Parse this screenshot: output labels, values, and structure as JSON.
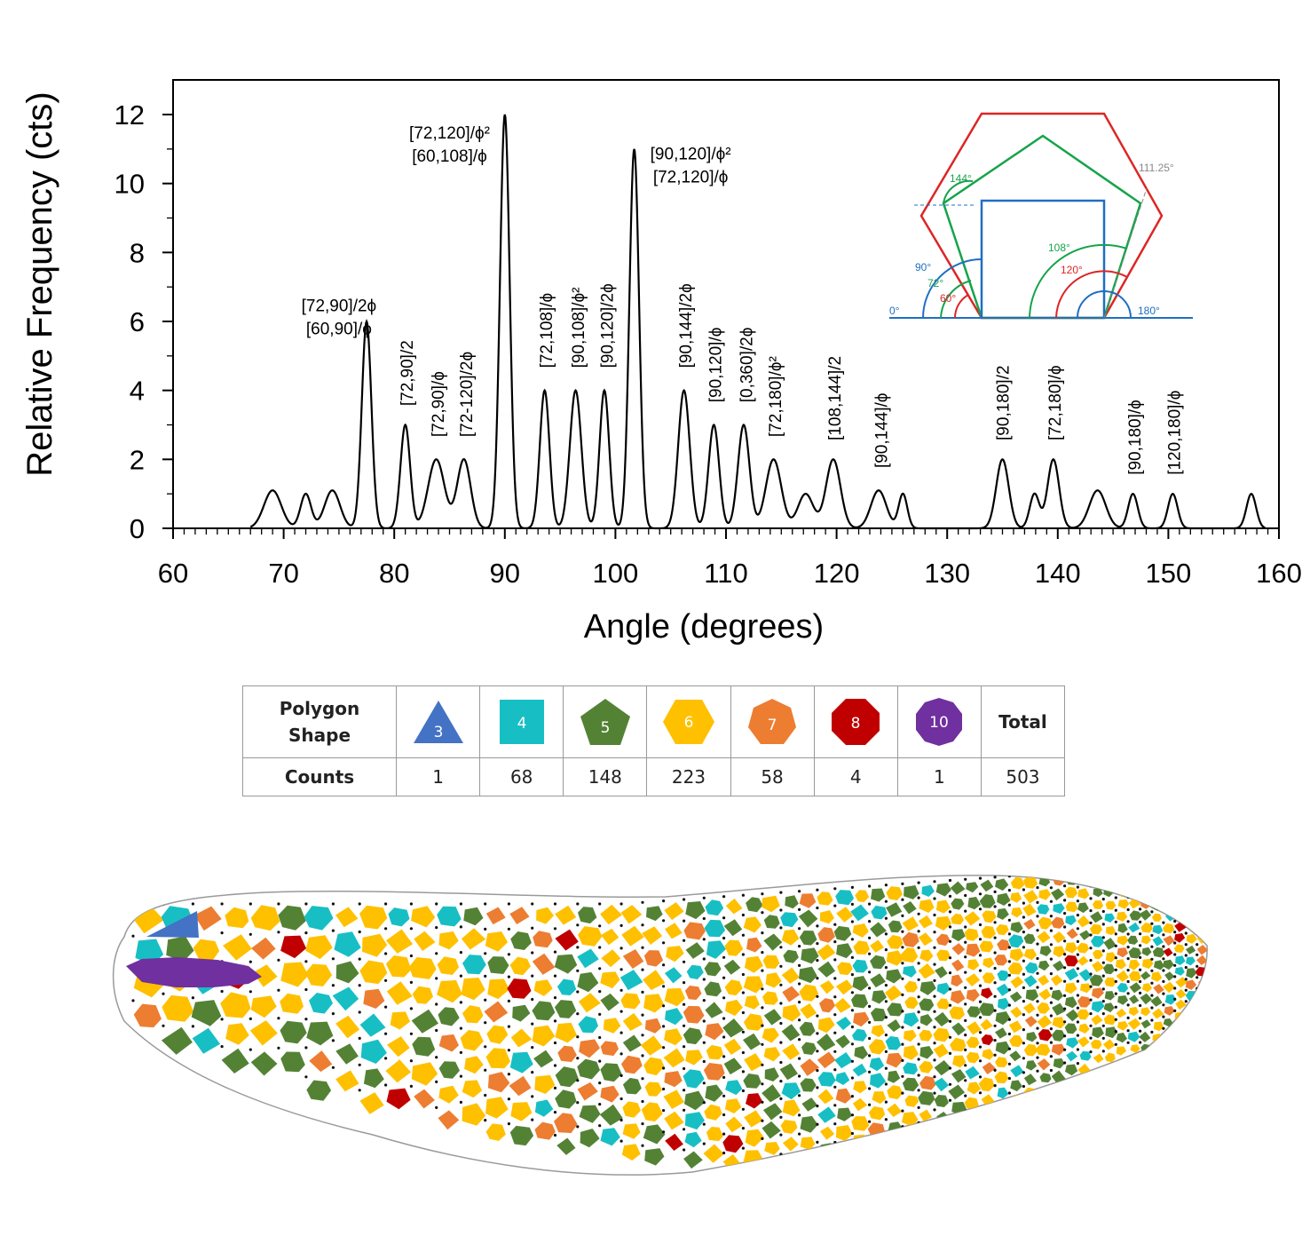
{
  "chart_data": {
    "type": "line",
    "title": "",
    "xlabel": "Angle (degrees)",
    "ylabel": "Relative Frequency (cts)",
    "xlim": [
      60,
      160
    ],
    "ylim": [
      0,
      12.5
    ],
    "xticks": [
      60,
      70,
      80,
      90,
      100,
      110,
      120,
      130,
      140,
      150,
      160
    ],
    "yticks": [
      0,
      2,
      4,
      6,
      8,
      10,
      12
    ],
    "grid": false,
    "legend": "none",
    "peaks": [
      {
        "x": 69,
        "y": 1.1,
        "w": 0.9
      },
      {
        "x": 72,
        "y": 1.0,
        "w": 0.55
      },
      {
        "x": 74.4,
        "y": 1.1,
        "w": 0.8
      },
      {
        "x": 77.5,
        "y": 6.0,
        "w": 0.5
      },
      {
        "x": 81,
        "y": 3.0,
        "w": 0.5
      },
      {
        "x": 83.8,
        "y": 2.0,
        "w": 0.85
      },
      {
        "x": 86.3,
        "y": 2.0,
        "w": 0.7
      },
      {
        "x": 90,
        "y": 12.0,
        "w": 0.5
      },
      {
        "x": 93.6,
        "y": 4.0,
        "w": 0.5
      },
      {
        "x": 96.4,
        "y": 4.0,
        "w": 0.6
      },
      {
        "x": 99,
        "y": 4.0,
        "w": 0.5
      },
      {
        "x": 101.7,
        "y": 11.0,
        "w": 0.5
      },
      {
        "x": 106.2,
        "y": 4.0,
        "w": 0.6
      },
      {
        "x": 108.9,
        "y": 3.0,
        "w": 0.55
      },
      {
        "x": 111.6,
        "y": 3.0,
        "w": 0.6
      },
      {
        "x": 114.3,
        "y": 2.0,
        "w": 0.8
      },
      {
        "x": 117.2,
        "y": 1.0,
        "w": 0.8
      },
      {
        "x": 119.7,
        "y": 2.0,
        "w": 0.75
      },
      {
        "x": 123.8,
        "y": 1.1,
        "w": 0.8
      },
      {
        "x": 126,
        "y": 1.0,
        "w": 0.45
      },
      {
        "x": 135,
        "y": 2.0,
        "w": 0.65
      },
      {
        "x": 137.9,
        "y": 1.0,
        "w": 0.5
      },
      {
        "x": 139.6,
        "y": 2.0,
        "w": 0.6
      },
      {
        "x": 143.6,
        "y": 1.1,
        "w": 0.85
      },
      {
        "x": 146.8,
        "y": 1.0,
        "w": 0.5
      },
      {
        "x": 150.4,
        "y": 1.0,
        "w": 0.5
      },
      {
        "x": 157.5,
        "y": 1.0,
        "w": 0.5
      }
    ],
    "annotations": [
      {
        "lines": [
          "[72,90]/2ϕ",
          "[60,90]/ϕ"
        ],
        "x": 75,
        "y": 6.3,
        "rot": 0
      },
      {
        "lines": [
          "[72,120]/ϕ²",
          "[60,108]/ϕ"
        ],
        "x": 85,
        "y": 11.3,
        "rot": 0
      },
      {
        "lines": [
          "[90,120]/ϕ²",
          "[72,120]/ϕ"
        ],
        "x": 106.8,
        "y": 10.7,
        "rot": 0
      },
      {
        "lines": [
          "[72,90]/2"
        ],
        "x": 81.1,
        "y": 3.55,
        "rot": -90
      },
      {
        "lines": [
          "[72,90]/ϕ"
        ],
        "x": 83.9,
        "y": 2.65,
        "rot": -90
      },
      {
        "lines": [
          "[72-120]/2ϕ"
        ],
        "x": 86.5,
        "y": 2.65,
        "rot": -90
      },
      {
        "lines": [
          "[72,108]/ϕ"
        ],
        "x": 93.7,
        "y": 4.65,
        "rot": -90
      },
      {
        "lines": [
          "[90,108]/ϕ²"
        ],
        "x": 96.6,
        "y": 4.65,
        "rot": -90
      },
      {
        "lines": [
          "[90,120]/2ϕ"
        ],
        "x": 99.2,
        "y": 4.65,
        "rot": -90
      },
      {
        "lines": [
          "[90,144]/2ϕ"
        ],
        "x": 106.3,
        "y": 4.65,
        "rot": -90
      },
      {
        "lines": [
          "[90,120]/ϕ"
        ],
        "x": 109.0,
        "y": 3.65,
        "rot": -90
      },
      {
        "lines": [
          "[0,360]/2ϕ"
        ],
        "x": 111.8,
        "y": 3.65,
        "rot": -90
      },
      {
        "lines": [
          "[72,180]/ϕ²"
        ],
        "x": 114.4,
        "y": 2.65,
        "rot": -90
      },
      {
        "lines": [
          "[108,144]/2"
        ],
        "x": 119.8,
        "y": 2.55,
        "rot": -90
      },
      {
        "lines": [
          "[90,144]/ϕ"
        ],
        "x": 124.0,
        "y": 1.75,
        "rot": -90
      },
      {
        "lines": [
          "[90,180]/2"
        ],
        "x": 135.0,
        "y": 2.55,
        "rot": -90
      },
      {
        "lines": [
          "[72,180]/ϕ"
        ],
        "x": 139.7,
        "y": 2.55,
        "rot": -90
      },
      {
        "lines": [
          "[90,180]/ϕ"
        ],
        "x": 146.9,
        "y": 1.55,
        "rot": -90
      },
      {
        "lines": [
          "[120,180]/ϕ"
        ],
        "x": 150.5,
        "y": 1.55,
        "rot": -90
      }
    ]
  },
  "inset": {
    "angle_labels": [
      {
        "text": "144°",
        "color": "#16a34a"
      },
      {
        "text": "111.25°",
        "color": "#888888"
      },
      {
        "text": "108°",
        "color": "#16a34a"
      },
      {
        "text": "120°",
        "color": "#dc2626"
      },
      {
        "text": "90°",
        "color": "#1f6fc1"
      },
      {
        "text": "72°",
        "color": "#16a34a"
      },
      {
        "text": "60°",
        "color": "#dc2626"
      },
      {
        "text": "0°",
        "color": "#1f6fc1"
      },
      {
        "text": "180°",
        "color": "#1f6fc1"
      }
    ]
  },
  "table": {
    "header_label": [
      "Polygon",
      "Shape"
    ],
    "counts_label": "Counts",
    "total_label": "Total",
    "total_value": "503",
    "shapes": [
      {
        "sides": "3",
        "count": "1",
        "color": "#4472c4"
      },
      {
        "sides": "4",
        "count": "68",
        "color": "#17bfc4"
      },
      {
        "sides": "5",
        "count": "148",
        "color": "#548235"
      },
      {
        "sides": "6",
        "count": "223",
        "color": "#ffc000"
      },
      {
        "sides": "7",
        "count": "58",
        "color": "#ed7d31"
      },
      {
        "sides": "8",
        "count": "4",
        "color": "#c00000"
      },
      {
        "sides": "10",
        "count": "1",
        "color": "#7030a0"
      }
    ]
  },
  "wing_mosaic": {
    "colors": [
      "#17bfc4",
      "#548235",
      "#ffc000",
      "#ed7d31",
      "#c00000",
      "#7030a0",
      "#4472c4"
    ]
  }
}
